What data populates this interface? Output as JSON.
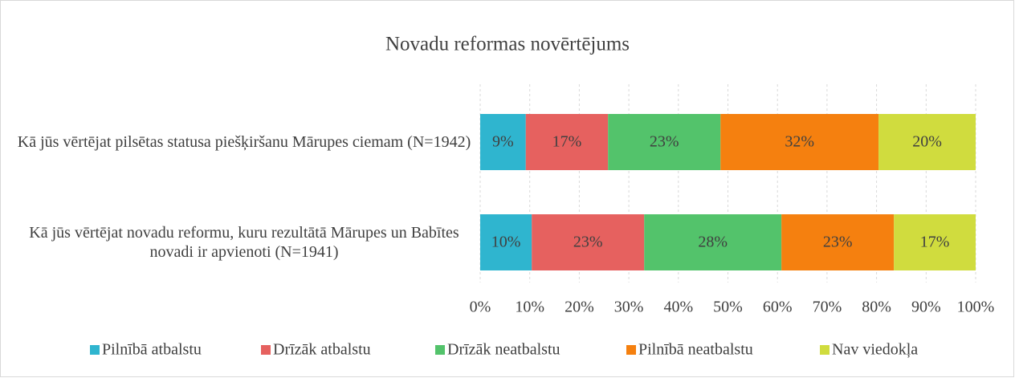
{
  "chart_data": {
    "type": "stacked_barh",
    "title": "Novadu reformas novērtējums",
    "categories": [
      "Kā jūs vērtējat pilsētas statusa piešķiršanu Mārupes ciemam (N=1942)",
      "Kā jūs vērtējat novadu reformu, kuru rezultātā Mārupes un Babītes novadi ir apvienoti (N=1941)"
    ],
    "series": [
      {
        "name": "Pilnībā atbalstu",
        "color": "#2fb5cf",
        "values": [
          9.2,
          10.4
        ],
        "value_labels": [
          "9%",
          "10%"
        ]
      },
      {
        "name": "Drīzāk atbalstu",
        "color": "#e6615f",
        "values": [
          16.6,
          22.7
        ],
        "value_labels": [
          "17%",
          "23%"
        ]
      },
      {
        "name": "Drīzāk neatbalstu",
        "color": "#53c36b",
        "values": [
          22.7,
          27.7
        ],
        "value_labels": [
          "23%",
          "28%"
        ]
      },
      {
        "name": "Pilnībā neatbalstu",
        "color": "#f5800f",
        "values": [
          31.9,
          22.7
        ],
        "value_labels": [
          "32%",
          "23%"
        ]
      },
      {
        "name": "Nav viedokļa",
        "color": "#d0dc3e",
        "values": [
          19.6,
          16.5
        ],
        "value_labels": [
          "20%",
          "17%"
        ]
      }
    ],
    "xlim": [
      0,
      100
    ],
    "xticks": [
      {
        "value": 0,
        "label": "0%"
      },
      {
        "value": 10,
        "label": "10%"
      },
      {
        "value": 20,
        "label": "20%"
      },
      {
        "value": 30,
        "label": "30%"
      },
      {
        "value": 40,
        "label": "40%"
      },
      {
        "value": 50,
        "label": "50%"
      },
      {
        "value": 60,
        "label": "60%"
      },
      {
        "value": 70,
        "label": "70%"
      },
      {
        "value": 80,
        "label": "80%"
      },
      {
        "value": 90,
        "label": "90%"
      },
      {
        "value": 100,
        "label": "100%"
      }
    ],
    "grid": true,
    "legend": "bottom"
  }
}
